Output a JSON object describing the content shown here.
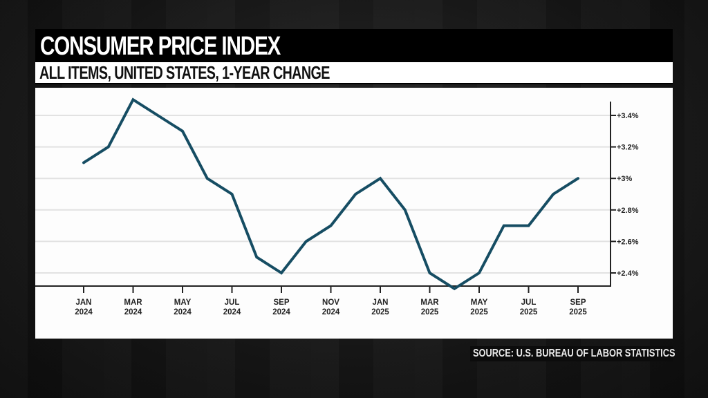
{
  "header": {
    "title": "CONSUMER PRICE INDEX",
    "subtitle": "ALL ITEMS, UNITED STATES, 1-YEAR CHANGE"
  },
  "footer": {
    "source": "SOURCE: U.S. BUREAU OF LABOR STATISTICS"
  },
  "colors": {
    "line": "#164d63",
    "grid": "#e2e2e2",
    "axis": "#222222"
  },
  "chart_data": {
    "type": "line",
    "title": "CONSUMER PRICE INDEX",
    "subtitle": "ALL ITEMS, UNITED STATES, 1-YEAR CHANGE",
    "xlabel": "",
    "ylabel": "",
    "y_axis_position": "right",
    "grid": true,
    "legend": "none",
    "x": [
      "2024-01",
      "2024-02",
      "2024-03",
      "2024-04",
      "2024-05",
      "2024-06",
      "2024-07",
      "2024-08",
      "2024-09",
      "2024-10",
      "2024-11",
      "2024-12",
      "2025-01",
      "2025-02",
      "2025-03",
      "2025-04",
      "2025-05",
      "2025-06",
      "2025-07",
      "2025-08",
      "2025-09"
    ],
    "x_ticks": [
      {
        "line1": "JAN",
        "line2": "2024",
        "index": 0
      },
      {
        "line1": "MAR",
        "line2": "2024",
        "index": 2
      },
      {
        "line1": "MAY",
        "line2": "2024",
        "index": 4
      },
      {
        "line1": "JUL",
        "line2": "2024",
        "index": 6
      },
      {
        "line1": "SEP",
        "line2": "2024",
        "index": 8
      },
      {
        "line1": "NOV",
        "line2": "2024",
        "index": 10
      },
      {
        "line1": "JAN",
        "line2": "2025",
        "index": 12
      },
      {
        "line1": "MAR",
        "line2": "2025",
        "index": 14
      },
      {
        "line1": "MAY",
        "line2": "2025",
        "index": 16
      },
      {
        "line1": "JUL",
        "line2": "2025",
        "index": 18
      },
      {
        "line1": "SEP",
        "line2": "2025",
        "index": 20
      }
    ],
    "series": [
      {
        "name": "CPI 1-year change (%)",
        "values": [
          3.1,
          3.2,
          3.5,
          3.4,
          3.3,
          3.0,
          2.9,
          2.5,
          2.4,
          2.6,
          2.7,
          2.9,
          3.0,
          2.8,
          2.4,
          2.3,
          2.4,
          2.7,
          2.7,
          2.9,
          3.0
        ]
      }
    ],
    "y_ticks": [
      {
        "value": 2.4,
        "label": "+2.4%"
      },
      {
        "value": 2.6,
        "label": "+2.6%"
      },
      {
        "value": 2.8,
        "label": "+2.8%"
      },
      {
        "value": 3.0,
        "label": "+3%"
      },
      {
        "value": 3.2,
        "label": "+3.2%"
      },
      {
        "value": 3.4,
        "label": "+3.4%"
      }
    ],
    "ylim": [
      2.3,
      3.5
    ]
  }
}
